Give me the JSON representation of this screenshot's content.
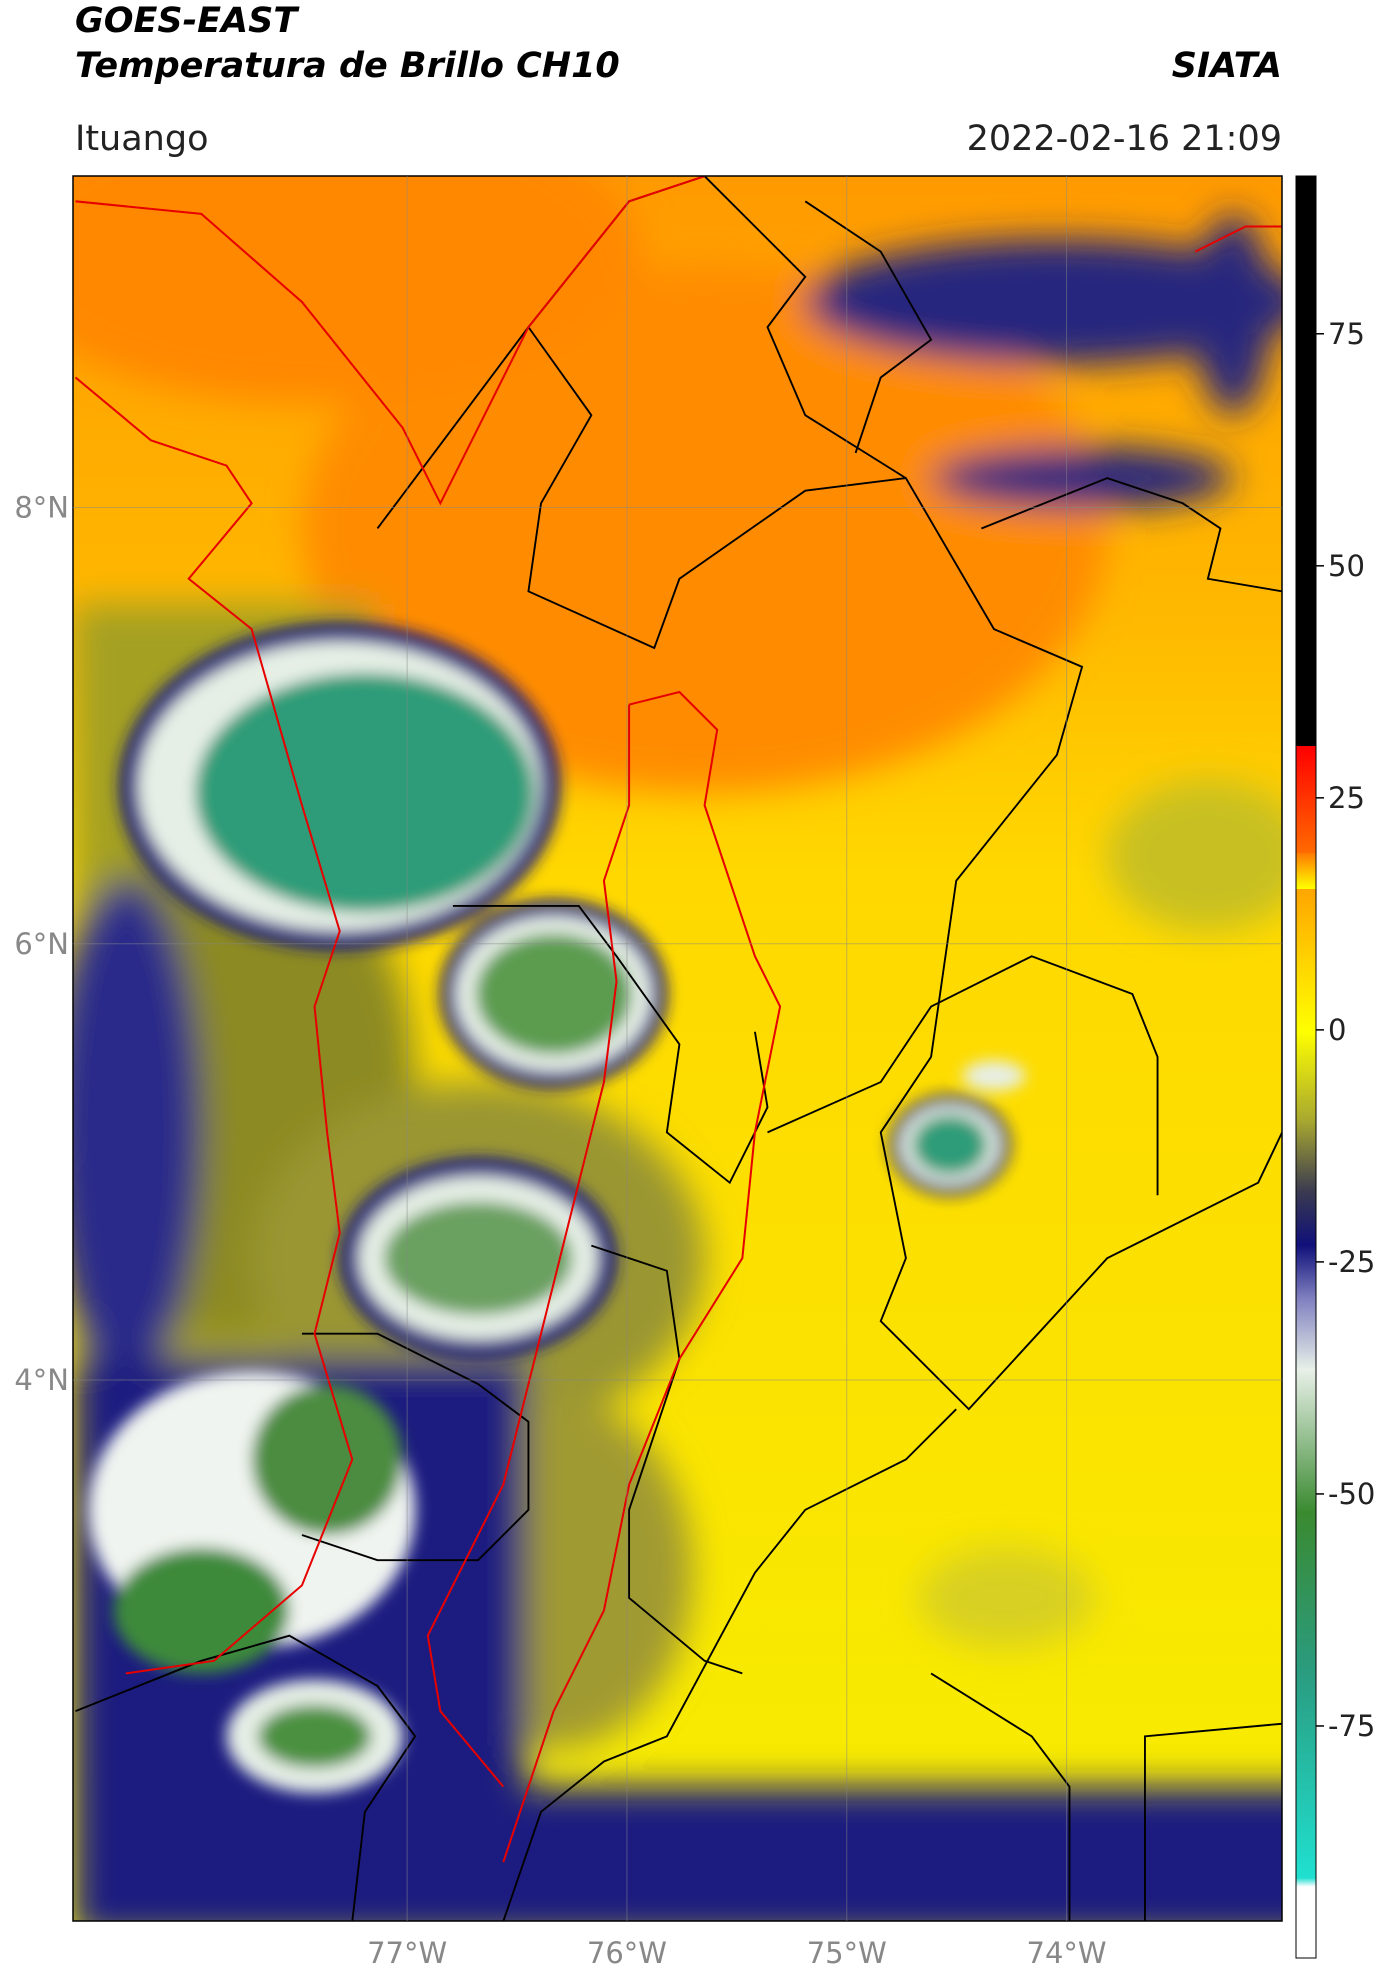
{
  "header": {
    "title": "GOES-EAST",
    "subtitle": "Temperatura de Brillo CH10",
    "source": "SIATA",
    "place": "Ituango",
    "datetime": "2022-02-16 21:09"
  },
  "map": {
    "xlim": [
      -78.52,
      -73.02
    ],
    "ylim": [
      1.52,
      9.52
    ],
    "xticks": [
      {
        "value": -77,
        "label": "77°W"
      },
      {
        "value": -76,
        "label": "76°W"
      },
      {
        "value": -75,
        "label": "75°W"
      },
      {
        "value": -74,
        "label": "74°W"
      }
    ],
    "yticks": [
      {
        "value": 4,
        "label": "4°N"
      },
      {
        "value": 6,
        "label": "6°N"
      },
      {
        "value": 8,
        "label": "8°N"
      }
    ]
  },
  "colorbar": {
    "lim": [
      -100,
      92
    ],
    "ticks": [
      75,
      50,
      25,
      0,
      -25,
      -50,
      -75
    ]
  }
}
